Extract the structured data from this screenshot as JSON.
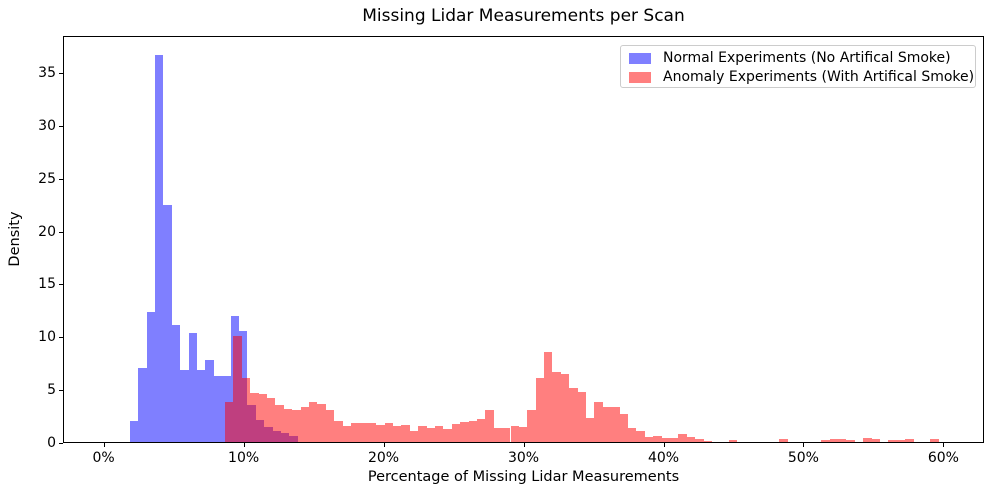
{
  "figure": {
    "background": "#ffffff",
    "title": "Missing Lidar Measurements per Scan",
    "xlabel": "Percentage of Missing Lidar Measurements",
    "ylabel": "Density"
  },
  "chart_data": {
    "type": "bar",
    "variant": "overlaid-density-histogram",
    "title": "Missing Lidar Measurements per Scan",
    "xlabel": "Percentage of Missing Lidar Measurements",
    "ylabel": "Density",
    "xlim": [
      -2.9,
      62.9
    ],
    "ylim": [
      0,
      38.5
    ],
    "grid": false,
    "bin_width": 0.6,
    "x_ticks": [
      {
        "v": 0,
        "label": "0%"
      },
      {
        "v": 10,
        "label": "10%"
      },
      {
        "v": 20,
        "label": "20%"
      },
      {
        "v": 30,
        "label": "30%"
      },
      {
        "v": 40,
        "label": "40%"
      },
      {
        "v": 50,
        "label": "50%"
      },
      {
        "v": 60,
        "label": "60%"
      }
    ],
    "y_ticks": [
      {
        "v": 0,
        "label": "0"
      },
      {
        "v": 5,
        "label": "5"
      },
      {
        "v": 10,
        "label": "10"
      },
      {
        "v": 15,
        "label": "15"
      },
      {
        "v": 20,
        "label": "20"
      },
      {
        "v": 25,
        "label": "25"
      },
      {
        "v": 30,
        "label": "30"
      },
      {
        "v": 35,
        "label": "35"
      }
    ],
    "legend_position": "top-right",
    "series": [
      {
        "name": "Normal Experiments (No Artifical Smoke)",
        "fill": "rgba(0,0,255,0.5)",
        "legend_color": "#7f7fff",
        "bars": [
          [
            1.8,
            2.0
          ],
          [
            2.4,
            7.0
          ],
          [
            3.0,
            12.3
          ],
          [
            3.6,
            36.6
          ],
          [
            4.2,
            22.4
          ],
          [
            4.8,
            11.1
          ],
          [
            5.4,
            6.8
          ],
          [
            6.0,
            10.3
          ],
          [
            6.6,
            6.8
          ],
          [
            7.2,
            7.8
          ],
          [
            7.8,
            6.2
          ],
          [
            8.4,
            6.2
          ],
          [
            9.0,
            11.9
          ],
          [
            9.6,
            10.5
          ],
          [
            10.2,
            3.5
          ],
          [
            10.8,
            2.1
          ],
          [
            11.4,
            1.45
          ],
          [
            12.0,
            1.05
          ],
          [
            12.6,
            0.85
          ],
          [
            13.2,
            0.6
          ]
        ]
      },
      {
        "name": "Anomaly Experiments (With Artifical Smoke)",
        "fill": "rgba(255,0,0,0.5)",
        "legend_color": "#ff7f7f",
        "bars": [
          [
            8.6,
            3.8
          ],
          [
            9.2,
            10.0
          ],
          [
            9.8,
            6.1
          ],
          [
            10.4,
            4.6
          ],
          [
            11.0,
            4.5
          ],
          [
            11.6,
            4.2
          ],
          [
            12.2,
            3.5
          ],
          [
            12.8,
            3.1
          ],
          [
            13.4,
            3.0
          ],
          [
            14.0,
            3.3
          ],
          [
            14.6,
            3.8
          ],
          [
            15.2,
            3.6
          ],
          [
            15.8,
            3.0
          ],
          [
            16.4,
            1.95
          ],
          [
            17.0,
            1.5
          ],
          [
            17.6,
            1.8
          ],
          [
            18.2,
            1.8
          ],
          [
            18.8,
            1.8
          ],
          [
            19.4,
            1.65
          ],
          [
            20.0,
            1.8
          ],
          [
            20.6,
            1.55
          ],
          [
            21.2,
            1.65
          ],
          [
            21.8,
            1.0
          ],
          [
            22.4,
            1.55
          ],
          [
            23.0,
            1.35
          ],
          [
            23.6,
            1.55
          ],
          [
            24.2,
            1.25
          ],
          [
            24.8,
            1.7
          ],
          [
            25.4,
            1.85
          ],
          [
            26.0,
            1.95
          ],
          [
            26.6,
            2.15
          ],
          [
            27.2,
            3.0
          ],
          [
            27.8,
            1.3
          ],
          [
            28.4,
            1.35
          ],
          [
            29.0,
            1.5
          ],
          [
            29.6,
            1.4
          ],
          [
            30.2,
            3.0
          ],
          [
            30.8,
            6.1
          ],
          [
            31.4,
            8.5
          ],
          [
            32.0,
            6.6
          ],
          [
            32.6,
            6.4
          ],
          [
            33.2,
            5.1
          ],
          [
            33.8,
            4.7
          ],
          [
            34.4,
            2.3
          ],
          [
            35.0,
            3.75
          ],
          [
            35.6,
            3.35
          ],
          [
            36.2,
            3.3
          ],
          [
            36.8,
            2.65
          ],
          [
            37.4,
            1.35
          ],
          [
            38.0,
            1.05
          ],
          [
            38.6,
            0.5
          ],
          [
            39.2,
            0.6
          ],
          [
            39.8,
            0.4
          ],
          [
            40.4,
            0.35
          ],
          [
            41.0,
            0.8
          ],
          [
            41.6,
            0.45
          ],
          [
            42.2,
            0.25
          ],
          [
            42.8,
            0.12
          ],
          [
            44.6,
            0.2
          ],
          [
            48.2,
            0.25
          ],
          [
            51.2,
            0.2
          ],
          [
            51.8,
            0.3
          ],
          [
            52.4,
            0.3
          ],
          [
            53.0,
            0.15
          ],
          [
            54.2,
            0.4
          ],
          [
            54.8,
            0.25
          ],
          [
            56.0,
            0.15
          ],
          [
            56.6,
            0.2
          ],
          [
            57.2,
            0.25
          ],
          [
            59.0,
            0.3
          ]
        ]
      }
    ]
  }
}
